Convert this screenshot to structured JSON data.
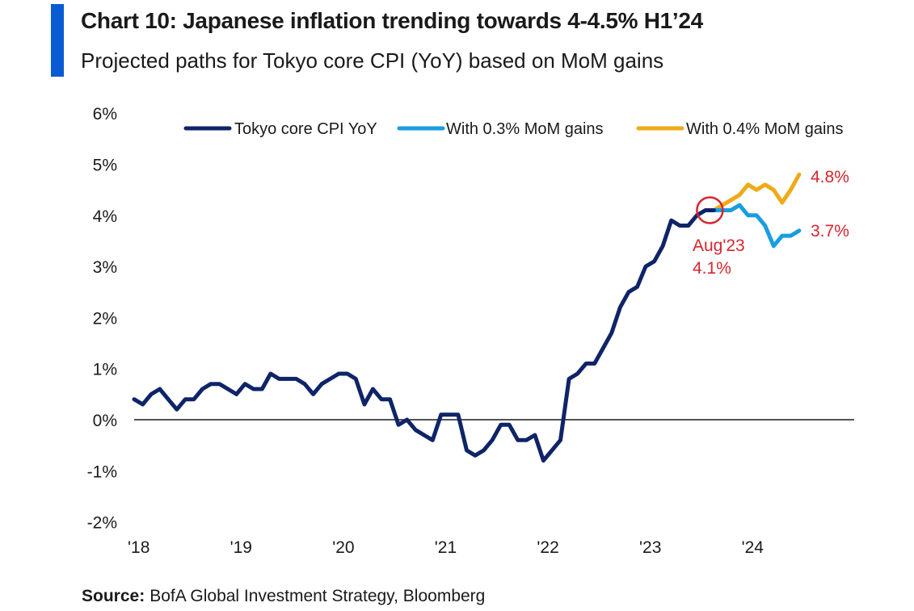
{
  "header": {
    "title": "Chart 10: Japanese inflation trending towards 4-4.5% H1’24",
    "subtitle": "Projected paths for Tokyo core CPI (YoY) based on MoM gains"
  },
  "footer": {
    "source_label": "Source:",
    "source_text": "BofA Global Investment Strategy, Bloomberg"
  },
  "colors": {
    "accent": "#0a5ad4",
    "cpi": "#0f2468",
    "mom03": "#189ee0",
    "mom04": "#eeaa18",
    "annotation": "#d6262f"
  },
  "chart_data": {
    "type": "line",
    "title": "Chart 10: Japanese inflation trending towards 4-4.5% H1’24",
    "subtitle": "Projected paths for Tokyo core CPI (YoY) based on MoM gains",
    "ylabel": "",
    "xlabel": "",
    "ylim": [
      -2,
      6
    ],
    "yticks": [
      -2,
      -1,
      0,
      1,
      2,
      3,
      4,
      5,
      6
    ],
    "ytick_labels": [
      "-2%",
      "-1%",
      "0%",
      "1%",
      "2%",
      "3%",
      "4%",
      "5%",
      "6%"
    ],
    "xticks": [
      0,
      12,
      24,
      36,
      48,
      60,
      72
    ],
    "xtick_labels": [
      "'18",
      "'19",
      "'20",
      "'21",
      "'22",
      "'23",
      "'24"
    ],
    "xlim": [
      0,
      84
    ],
    "legend_position": "top",
    "series": [
      {
        "name": "Tokyo core CPI YoY",
        "color": "#0f2468",
        "x": [
          0,
          1,
          2,
          3,
          4,
          5,
          6,
          7,
          8,
          9,
          10,
          11,
          12,
          13,
          14,
          15,
          16,
          17,
          18,
          19,
          20,
          21,
          22,
          23,
          24,
          25,
          26,
          27,
          28,
          29,
          30,
          31,
          32,
          33,
          34,
          35,
          36,
          37,
          38,
          39,
          40,
          41,
          42,
          43,
          44,
          45,
          46,
          47,
          48,
          49,
          50,
          51,
          52,
          53,
          54,
          55,
          56,
          57,
          58,
          59,
          60,
          61,
          62,
          63,
          64,
          65,
          66,
          67,
          68
        ],
        "values": [
          0.4,
          0.3,
          0.5,
          0.6,
          0.4,
          0.2,
          0.4,
          0.4,
          0.6,
          0.7,
          0.7,
          0.6,
          0.5,
          0.7,
          0.6,
          0.6,
          0.9,
          0.8,
          0.8,
          0.8,
          0.7,
          0.5,
          0.7,
          0.8,
          0.9,
          0.9,
          0.8,
          0.3,
          0.6,
          0.4,
          0.4,
          -0.1,
          0.0,
          -0.2,
          -0.3,
          -0.4,
          0.1,
          0.1,
          0.1,
          -0.6,
          -0.7,
          -0.6,
          -0.4,
          -0.1,
          -0.1,
          -0.4,
          -0.4,
          -0.3,
          -0.8,
          -0.6,
          -0.4,
          0.8,
          0.9,
          1.1,
          1.1,
          1.4,
          1.7,
          2.2,
          2.5,
          2.6,
          3.0,
          3.1,
          3.4,
          3.9,
          3.8,
          3.8,
          4.0,
          4.1,
          4.1
        ]
      },
      {
        "name": "With 0.3% MoM gains",
        "color": "#189ee0",
        "x": [
          68,
          69,
          70,
          71,
          72,
          73,
          74,
          75,
          76,
          77,
          78
        ],
        "values": [
          4.1,
          4.1,
          4.1,
          4.2,
          4.0,
          4.0,
          3.8,
          3.4,
          3.6,
          3.6,
          3.7
        ]
      },
      {
        "name": "With 0.4% MoM gains",
        "color": "#eeaa18",
        "x": [
          68,
          69,
          70,
          71,
          72,
          73,
          74,
          75,
          76,
          77,
          78
        ],
        "values": [
          4.1,
          4.2,
          4.3,
          4.4,
          4.6,
          4.5,
          4.6,
          4.5,
          4.25,
          4.5,
          4.8
        ]
      }
    ],
    "annotations": [
      {
        "text": "4.8%",
        "x": 78,
        "y": 4.8,
        "color": "#d6262f"
      },
      {
        "text": "3.7%",
        "x": 78,
        "y": 3.7,
        "color": "#d6262f"
      },
      {
        "text": "Aug'23",
        "x": 68,
        "y": 4.1,
        "color": "#d6262f"
      },
      {
        "text": "4.1%",
        "x": 68,
        "y": 4.1,
        "color": "#d6262f"
      }
    ]
  }
}
